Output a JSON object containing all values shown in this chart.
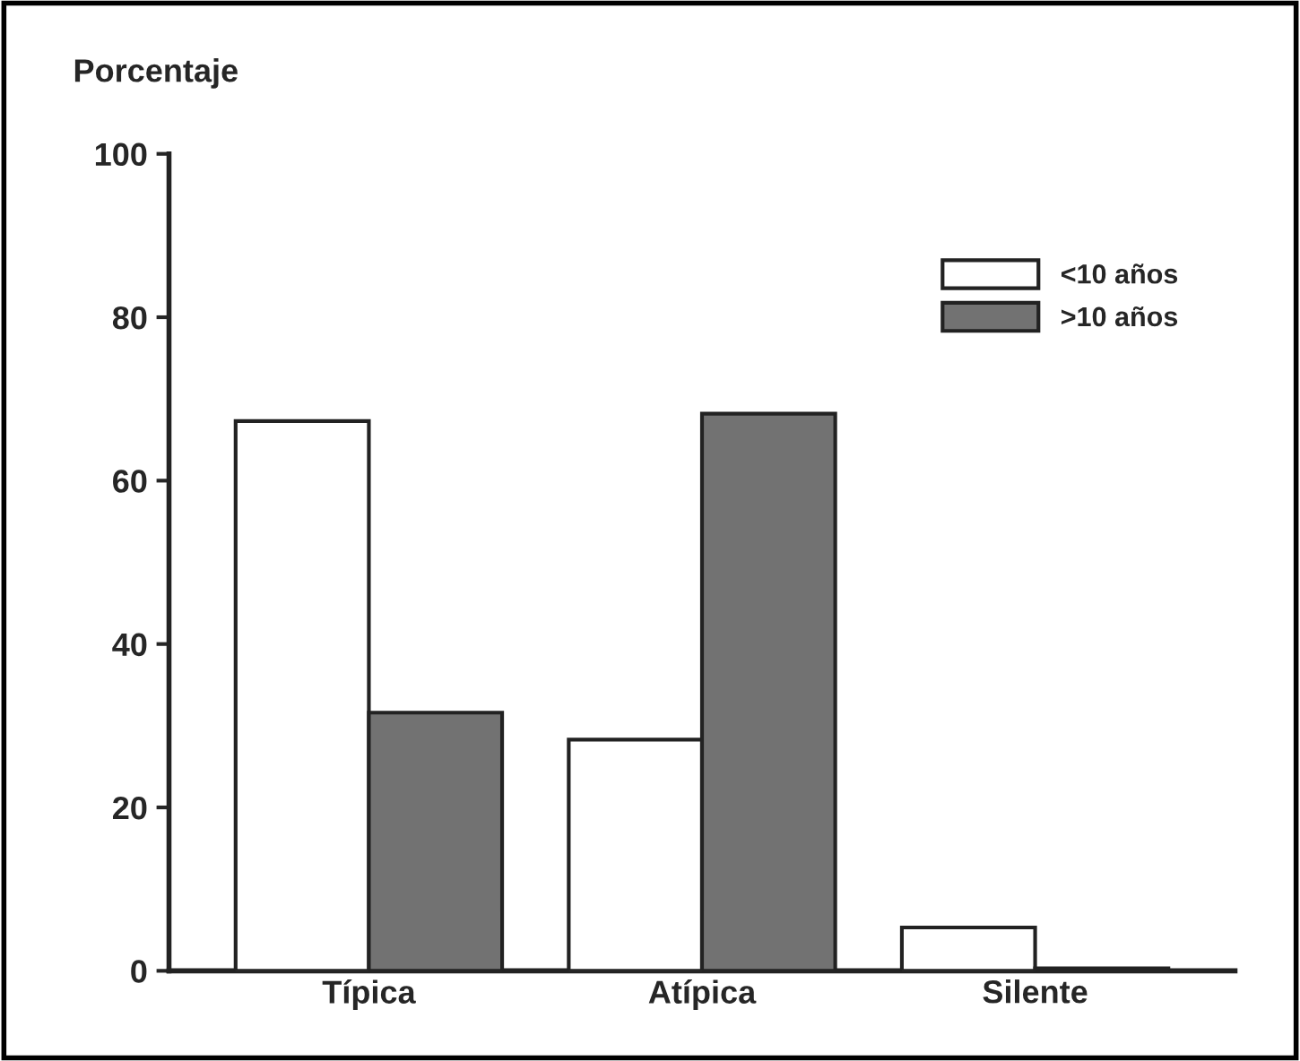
{
  "chart_data": {
    "type": "bar",
    "ylabel": "Porcentaje",
    "categories": [
      "Típica",
      "Atípica",
      "Silente"
    ],
    "series": [
      {
        "name": "<10 años",
        "color": "#ffffff",
        "values": [
          67.3,
          28.3,
          5.3
        ]
      },
      {
        "name": ">10 años",
        "color": "#727272",
        "values": [
          31.6,
          68.2,
          0.3
        ]
      }
    ],
    "ylim": [
      0,
      100
    ],
    "yticks": [
      0,
      20,
      40,
      60,
      80,
      100
    ],
    "grid": false,
    "legend": "top right"
  }
}
